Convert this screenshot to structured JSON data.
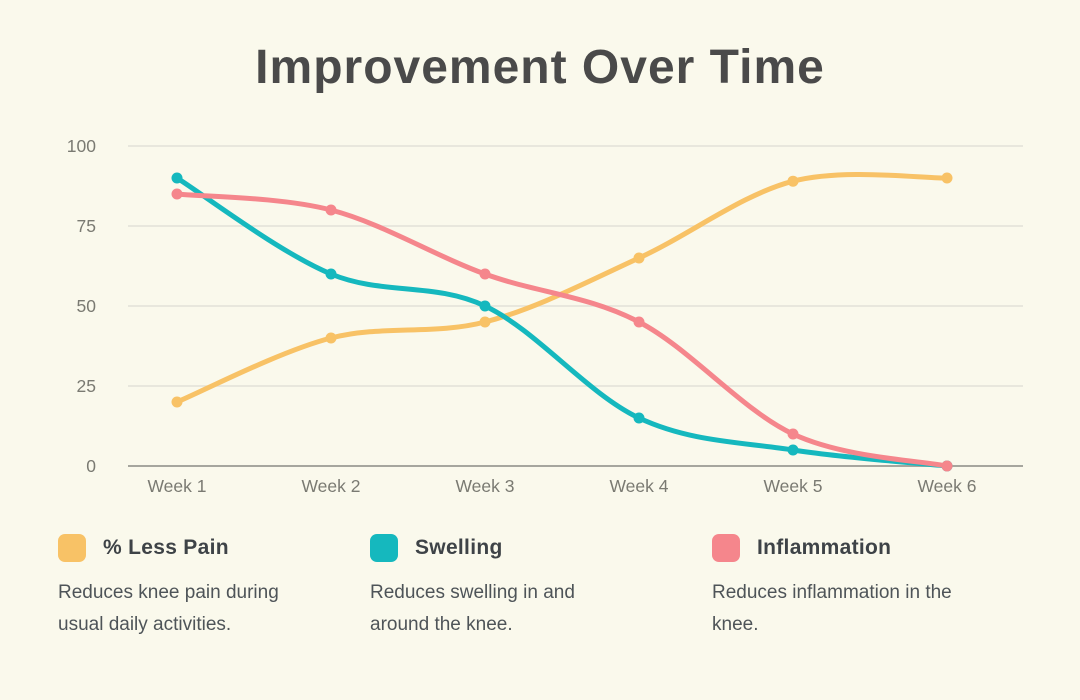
{
  "title": "Improvement Over Time",
  "colors": {
    "background": "#faf9ec",
    "title_text": "#4a4a4a",
    "grid": "#e1e1d8",
    "axis_zero": "#a6a69e",
    "tick_text": "#7a7a72",
    "pain": "#f8c266",
    "swelling": "#15b8be",
    "inflammation": "#f5868c"
  },
  "chart_data": {
    "type": "line",
    "title": "Improvement Over Time",
    "x": [
      "Week 1",
      "Week 2",
      "Week 3",
      "Week 4",
      "Week 5",
      "Week 6"
    ],
    "series": [
      {
        "name": "% Less Pain",
        "color_key": "pain",
        "values": [
          20,
          40,
          45,
          65,
          89,
          90
        ]
      },
      {
        "name": "Swelling",
        "color_key": "swelling",
        "values": [
          90,
          60,
          50,
          15,
          5,
          0
        ]
      },
      {
        "name": "Inflammation",
        "color_key": "inflammation",
        "values": [
          85,
          80,
          60,
          45,
          10,
          0
        ]
      }
    ],
    "xlabel": "",
    "ylabel": "",
    "ylim": [
      0,
      100
    ],
    "yticks": [
      0,
      25,
      50,
      75,
      100
    ],
    "grid": true,
    "curve": "smooth",
    "legend_position": "bottom"
  },
  "legend": {
    "items": [
      {
        "label": "% Less Pain",
        "color_key": "pain",
        "description": "Reduces knee pain during usual daily activities."
      },
      {
        "label": "Swelling",
        "color_key": "swelling",
        "description": "Reduces swelling in and around the knee."
      },
      {
        "label": "Inflammation",
        "color_key": "inflammation",
        "description": "Reduces inflammation in the knee."
      }
    ]
  }
}
